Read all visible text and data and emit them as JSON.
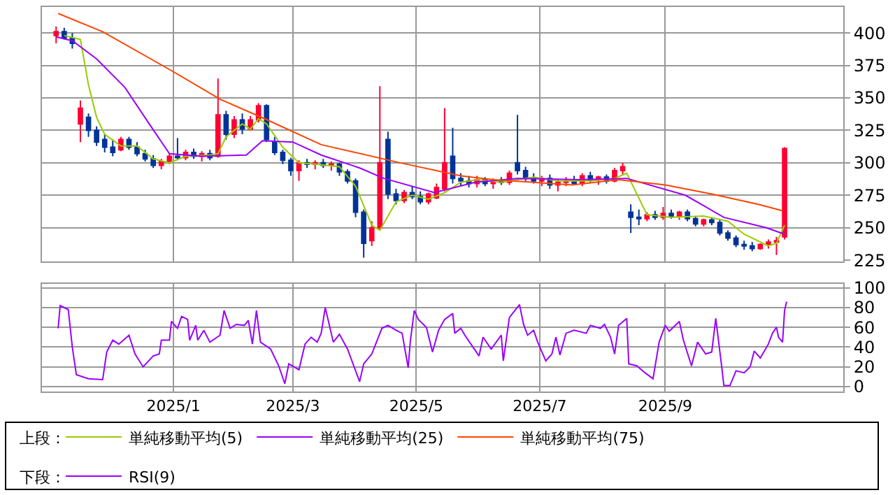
{
  "chart_data": [
    {
      "type": "candlestick",
      "legend": "bottom",
      "legend_title": "上段：",
      "grid": true,
      "tick_labels": "y",
      "x": [
        "2024-11-04",
        "2024-11-08",
        "2024-11-12",
        "2024-11-16",
        "2024-11-20",
        "2024-11-24",
        "2024-11-28",
        "2024-12-02",
        "2024-12-06",
        "2024-12-10",
        "2024-12-14",
        "2024-12-18",
        "2024-12-22",
        "2024-12-26",
        "2024-12-30",
        "2025-01-03",
        "2025-01-07",
        "2025-01-11",
        "2025-01-15",
        "2025-01-19",
        "2025-01-23",
        "2025-01-27",
        "2025-01-31",
        "2025-02-04",
        "2025-02-08",
        "2025-02-12",
        "2025-02-16",
        "2025-02-20",
        "2025-02-24",
        "2025-02-28",
        "2025-03-04",
        "2025-03-08",
        "2025-03-12",
        "2025-03-16",
        "2025-03-20",
        "2025-03-24",
        "2025-03-28",
        "2025-04-01",
        "2025-04-05",
        "2025-04-09",
        "2025-04-13",
        "2025-04-17",
        "2025-04-21",
        "2025-04-25",
        "2025-04-29",
        "2025-05-03",
        "2025-05-07",
        "2025-05-11",
        "2025-05-15",
        "2025-05-19",
        "2025-05-23",
        "2025-05-27",
        "2025-05-31",
        "2025-06-04",
        "2025-06-08",
        "2025-06-12",
        "2025-06-16",
        "2025-06-20",
        "2025-06-24",
        "2025-06-28",
        "2025-07-02",
        "2025-07-06",
        "2025-07-10",
        "2025-07-14",
        "2025-07-18",
        "2025-07-22",
        "2025-07-26",
        "2025-07-30",
        "2025-08-03",
        "2025-08-07",
        "2025-08-11",
        "2025-08-15",
        "2025-08-19",
        "2025-08-23",
        "2025-08-27",
        "2025-08-31",
        "2025-09-04",
        "2025-09-08",
        "2025-09-12",
        "2025-09-16",
        "2025-09-20",
        "2025-09-24",
        "2025-09-28",
        "2025-10-02",
        "2025-10-06",
        "2025-10-10",
        "2025-10-14",
        "2025-10-18",
        "2025-10-22",
        "2025-10-26",
        "2025-10-30"
      ],
      "ohlc": [
        [
          398,
          405,
          392,
          401
        ],
        [
          401,
          404,
          395,
          396
        ],
        [
          396,
          400,
          388,
          392
        ],
        [
          330,
          348,
          316,
          342
        ],
        [
          335,
          338,
          320,
          325
        ],
        [
          325,
          328,
          313,
          316
        ],
        [
          318,
          322,
          308,
          312
        ],
        [
          312,
          318,
          305,
          308
        ],
        [
          310,
          320,
          309,
          318
        ],
        [
          318,
          320,
          310,
          312
        ],
        [
          312,
          316,
          305,
          307
        ],
        [
          307,
          310,
          301,
          303
        ],
        [
          303,
          306,
          296,
          298
        ],
        [
          298,
          303,
          295,
          301
        ],
        [
          301,
          307,
          299,
          305
        ],
        [
          305,
          319,
          302,
          304
        ],
        [
          304,
          310,
          302,
          308
        ],
        [
          308,
          311,
          303,
          305
        ],
        [
          305,
          309,
          301,
          307
        ],
        [
          307,
          310,
          302,
          304
        ],
        [
          305,
          365,
          304,
          337
        ],
        [
          337,
          340,
          318,
          322
        ],
        [
          322,
          336,
          319,
          333
        ],
        [
          333,
          338,
          322,
          326
        ],
        [
          326,
          336,
          325,
          333
        ],
        [
          333,
          346,
          331,
          344
        ],
        [
          344,
          345,
          316,
          318
        ],
        [
          316,
          320,
          306,
          308
        ],
        [
          308,
          310,
          299,
          302
        ],
        [
          302,
          304,
          290,
          294
        ],
        [
          294,
          302,
          286,
          300
        ],
        [
          300,
          303,
          296,
          299
        ],
        [
          299,
          302,
          295,
          300
        ],
        [
          300,
          303,
          296,
          298
        ],
        [
          298,
          301,
          294,
          299
        ],
        [
          299,
          300,
          290,
          293
        ],
        [
          293,
          295,
          284,
          286
        ],
        [
          286,
          288,
          258,
          262
        ],
        [
          262,
          264,
          227,
          238
        ],
        [
          240,
          255,
          236,
          250
        ],
        [
          250,
          359,
          248,
          300
        ],
        [
          318,
          324,
          272,
          276
        ],
        [
          276,
          280,
          268,
          271
        ],
        [
          271,
          279,
          269,
          277
        ],
        [
          277,
          282,
          272,
          274
        ],
        [
          274,
          278,
          268,
          270
        ],
        [
          270,
          277,
          268,
          276
        ],
        [
          273,
          284,
          272,
          281
        ],
        [
          280,
          342,
          278,
          300
        ],
        [
          305,
          327,
          284,
          288
        ],
        [
          288,
          292,
          282,
          286
        ],
        [
          286,
          290,
          281,
          284
        ],
        [
          284,
          290,
          281,
          287
        ],
        [
          287,
          289,
          282,
          284
        ],
        [
          284,
          288,
          280,
          286
        ],
        [
          286,
          289,
          283,
          285
        ],
        [
          285,
          294,
          283,
          292
        ],
        [
          300,
          337,
          291,
          294
        ],
        [
          294,
          297,
          286,
          288
        ],
        [
          288,
          292,
          284,
          286
        ],
        [
          286,
          290,
          282,
          288
        ],
        [
          288,
          291,
          280,
          283
        ],
        [
          283,
          287,
          278,
          285
        ],
        [
          285,
          289,
          282,
          286
        ],
        [
          286,
          290,
          283,
          284
        ],
        [
          284,
          292,
          282,
          290
        ],
        [
          290,
          293,
          285,
          287
        ],
        [
          287,
          290,
          283,
          289
        ],
        [
          289,
          291,
          284,
          286
        ],
        [
          286,
          296,
          285,
          294
        ],
        [
          294,
          300,
          291,
          297
        ],
        [
          262,
          268,
          246,
          258
        ],
        [
          258,
          264,
          252,
          257
        ],
        [
          257,
          262,
          255,
          260
        ],
        [
          260,
          263,
          256,
          258
        ],
        [
          258,
          266,
          256,
          261
        ],
        [
          261,
          264,
          257,
          259
        ],
        [
          259,
          263,
          256,
          262
        ],
        [
          262,
          264,
          255,
          257
        ],
        [
          257,
          259,
          251,
          253
        ],
        [
          253,
          257,
          251,
          256
        ],
        [
          256,
          258,
          252,
          254
        ],
        [
          254,
          256,
          244,
          246
        ],
        [
          246,
          248,
          240,
          242
        ],
        [
          242,
          244,
          235,
          237
        ],
        [
          237,
          240,
          233,
          236
        ],
        [
          236,
          239,
          232,
          234
        ],
        [
          234,
          238,
          233,
          237
        ],
        [
          237,
          241,
          234,
          239
        ],
        [
          239,
          243,
          229,
          240
        ],
        [
          243,
          312,
          241,
          311
        ]
      ],
      "colors": [
        "#ff0033",
        "#003399",
        "#003399",
        "#ff0033",
        "#003399",
        "#003399",
        "#003399",
        "#003399",
        "#ff0033",
        "#003399",
        "#003399",
        "#003399",
        "#003399",
        "#ff0033",
        "#ff0033",
        "#003399",
        "#ff0033",
        "#003399",
        "#ff0033",
        "#003399",
        "#ff0033",
        "#003399",
        "#ff0033",
        "#003399",
        "#ff0033",
        "#ff0033",
        "#003399",
        "#003399",
        "#003399",
        "#003399",
        "#ff0033",
        "#003399",
        "#ff0033",
        "#003399",
        "#ff0033",
        "#003399",
        "#003399",
        "#003399",
        "#003399",
        "#ff0033",
        "#ff0033",
        "#003399",
        "#003399",
        "#ff0033",
        "#003399",
        "#003399",
        "#ff0033",
        "#ff0033",
        "#ff0033",
        "#003399",
        "#003399",
        "#003399",
        "#ff0033",
        "#003399",
        "#ff0033",
        "#003399",
        "#ff0033",
        "#003399",
        "#003399",
        "#003399",
        "#ff0033",
        "#003399",
        "#ff0033",
        "#ff0033",
        "#003399",
        "#ff0033",
        "#003399",
        "#ff0033",
        "#003399",
        "#ff0033",
        "#ff0033",
        "#003399",
        "#003399",
        "#ff0033",
        "#003399",
        "#ff0033",
        "#003399",
        "#ff0033",
        "#003399",
        "#003399",
        "#ff0033",
        "#003399",
        "#003399",
        "#003399",
        "#003399",
        "#003399",
        "#003399",
        "#ff0033",
        "#ff0033",
        "#ff0033",
        "#ff0033"
      ],
      "series": [
        {
          "name": "単純移動平均(5)",
          "type": "line",
          "color": "#99cc00",
          "x": [
            "2024-11-08",
            "2024-11-16",
            "2024-11-20",
            "2024-11-24",
            "2024-11-28",
            "2024-12-06",
            "2024-12-14",
            "2024-12-22",
            "2024-12-30",
            "2025-01-07",
            "2025-01-19",
            "2025-01-23",
            "2025-01-27",
            "2025-02-04",
            "2025-02-08",
            "2025-02-12",
            "2025-02-16",
            "2025-02-24",
            "2025-03-04",
            "2025-03-12",
            "2025-03-24",
            "2025-04-01",
            "2025-04-09",
            "2025-04-13",
            "2025-04-21",
            "2025-04-29",
            "2025-05-07",
            "2025-05-15",
            "2025-05-23",
            "2025-05-31",
            "2025-06-12",
            "2025-06-28",
            "2025-07-10",
            "2025-07-26",
            "2025-08-07",
            "2025-08-13",
            "2025-08-23",
            "2025-09-04",
            "2025-09-20",
            "2025-10-02",
            "2025-10-10",
            "2025-10-22",
            "2025-10-26",
            "2025-10-30"
          ],
          "values": [
            398,
            395,
            360,
            335,
            322,
            313,
            313,
            303,
            300,
            305,
            306,
            307,
            320,
            330,
            326,
            334,
            330,
            312,
            300,
            299,
            297,
            282,
            252,
            248,
            270,
            275,
            272,
            277,
            285,
            287,
            285,
            289,
            286,
            286,
            288,
            292,
            260,
            258,
            259,
            255,
            245,
            236,
            238,
            252
          ]
        },
        {
          "name": "単純移動平均(25)",
          "type": "line",
          "color": "#9900ff",
          "x": [
            "2024-11-04",
            "2024-11-12",
            "2024-11-24",
            "2024-12-08",
            "2024-12-20",
            "2024-12-30",
            "2025-01-15",
            "2025-02-06",
            "2025-02-14",
            "2025-03-01",
            "2025-03-15",
            "2025-04-03",
            "2025-04-15",
            "2025-05-10",
            "2025-05-30",
            "2025-06-20",
            "2025-07-20",
            "2025-08-13",
            "2025-09-11",
            "2025-09-30",
            "2025-10-21",
            "2025-10-30"
          ],
          "values": [
            397,
            394,
            380,
            358,
            330,
            307,
            305,
            306,
            317,
            316,
            306,
            296,
            288,
            277,
            285,
            288,
            287,
            288,
            275,
            258,
            250,
            245
          ]
        },
        {
          "name": "単純移動平均(75)",
          "type": "line",
          "color": "#ff4400",
          "x": [
            "2024-11-05",
            "2024-11-27",
            "2024-12-31",
            "2025-01-24",
            "2025-02-15",
            "2025-03-15",
            "2025-04-23",
            "2025-05-23",
            "2025-06-08",
            "2025-07-17",
            "2025-08-09",
            "2025-09-01",
            "2025-09-24",
            "2025-10-17",
            "2025-10-29"
          ],
          "values": [
            415,
            401,
            371,
            349,
            334,
            314,
            300,
            290,
            287,
            283,
            287,
            283,
            276,
            268,
            263
          ]
        }
      ],
      "xlim": [
        "2024-10-28",
        "2025-11-28"
      ],
      "xticks": [
        {
          "value": "2025-01-01",
          "label": null
        },
        {
          "value": "2025-03-01",
          "label": null
        },
        {
          "value": "2025-05-01",
          "label": null
        },
        {
          "value": "2025-07-01",
          "label": null
        },
        {
          "value": "2025-09-01",
          "label": null
        }
      ],
      "ylim": [
        224,
        420
      ],
      "yticks": [
        225,
        250,
        275,
        300,
        325,
        350,
        375,
        400
      ]
    },
    {
      "type": "line",
      "legend": "bottom",
      "legend_title": "下段：",
      "grid": true,
      "series": [
        {
          "name": "RSI(9)",
          "color": "#9900ff",
          "x": [
            "2024-11-05",
            "2024-11-06",
            "2024-11-10",
            "2024-11-12",
            "2024-11-14",
            "2024-11-20",
            "2024-11-27",
            "2024-11-29",
            "2024-12-02",
            "2024-12-05",
            "2024-12-10",
            "2024-12-13",
            "2024-12-17",
            "2024-12-22",
            "2024-12-25",
            "2024-12-26",
            "2024-12-30",
            "2024-12-31",
            "2025-01-03",
            "2025-01-05",
            "2025-01-08",
            "2025-01-09",
            "2025-01-12",
            "2025-01-13",
            "2025-01-16",
            "2025-01-19",
            "2025-01-24",
            "2025-01-26",
            "2025-01-29",
            "2025-02-01",
            "2025-02-05",
            "2025-02-07",
            "2025-02-09",
            "2025-02-11",
            "2025-02-13",
            "2025-02-18",
            "2025-02-22",
            "2025-02-25",
            "2025-02-27",
            "2025-03-04",
            "2025-03-07",
            "2025-03-10",
            "2025-03-13",
            "2025-03-15",
            "2025-03-17",
            "2025-03-21",
            "2025-03-24",
            "2025-03-28",
            "2025-04-03",
            "2025-04-05",
            "2025-04-09",
            "2025-04-14",
            "2025-04-17",
            "2025-04-21",
            "2025-04-24",
            "2025-04-27",
            "2025-04-28",
            "2025-04-30",
            "2025-05-02",
            "2025-05-06",
            "2025-05-09",
            "2025-05-12",
            "2025-05-15",
            "2025-05-19",
            "2025-05-20",
            "2025-05-23",
            "2025-05-25",
            "2025-05-29",
            "2025-06-01",
            "2025-06-03",
            "2025-06-07",
            "2025-06-12",
            "2025-06-13",
            "2025-06-16",
            "2025-06-21",
            "2025-06-23",
            "2025-06-25",
            "2025-06-28",
            "2025-06-30",
            "2025-07-04",
            "2025-07-07",
            "2025-07-09",
            "2025-07-11",
            "2025-07-14",
            "2025-07-18",
            "2025-07-24",
            "2025-07-26",
            "2025-07-31",
            "2025-08-02",
            "2025-08-05",
            "2025-08-07",
            "2025-08-09",
            "2025-08-13",
            "2025-08-14",
            "2025-08-18",
            "2025-08-22",
            "2025-08-26",
            "2025-08-29",
            "2025-09-01",
            "2025-09-03",
            "2025-09-08",
            "2025-09-10",
            "2025-09-14",
            "2025-09-17",
            "2025-09-21",
            "2025-09-24",
            "2025-09-26",
            "2025-09-29",
            "2025-09-30",
            "2025-10-03",
            "2025-10-06",
            "2025-10-10",
            "2025-10-13",
            "2025-10-15",
            "2025-10-18",
            "2025-10-22",
            "2025-10-24",
            "2025-10-26",
            "2025-10-27",
            "2025-10-29",
            "2025-10-30",
            "2025-10-31"
          ],
          "values": [
            59,
            82,
            78,
            40,
            12,
            8,
            7,
            35,
            47,
            43,
            52,
            33,
            20,
            31,
            33,
            47,
            47,
            66,
            59,
            71,
            68,
            47,
            62,
            47,
            57,
            45,
            52,
            77,
            59,
            63,
            62,
            67,
            43,
            77,
            45,
            38,
            21,
            3,
            23,
            17,
            43,
            50,
            45,
            54,
            80,
            45,
            53,
            38,
            5,
            23,
            33,
            59,
            62,
            57,
            54,
            19,
            45,
            77,
            68,
            60,
            35,
            57,
            68,
            74,
            54,
            59,
            52,
            40,
            31,
            50,
            38,
            52,
            26,
            70,
            83,
            63,
            52,
            57,
            45,
            26,
            33,
            50,
            32,
            54,
            57,
            54,
            62,
            59,
            63,
            50,
            33,
            62,
            69,
            23,
            21,
            14,
            8,
            45,
            62,
            56,
            66,
            47,
            21,
            45,
            33,
            35,
            69,
            19,
            1,
            1,
            16,
            14,
            20,
            36,
            29,
            43,
            54,
            60,
            50,
            45,
            77,
            86
          ]
        }
      ],
      "xlim": [
        "2024-10-28",
        "2025-11-28"
      ],
      "xticks": [
        {
          "value": "2025-01-01",
          "label": "2025/1"
        },
        {
          "value": "2025-03-01",
          "label": "2025/3"
        },
        {
          "value": "2025-05-01",
          "label": "2025/5"
        },
        {
          "value": "2025-07-01",
          "label": "2025/7"
        },
        {
          "value": "2025-09-01",
          "label": "2025/9"
        }
      ],
      "ylim": [
        -5,
        104
      ],
      "yticks": [
        0,
        20,
        40,
        60,
        80,
        100
      ]
    }
  ]
}
